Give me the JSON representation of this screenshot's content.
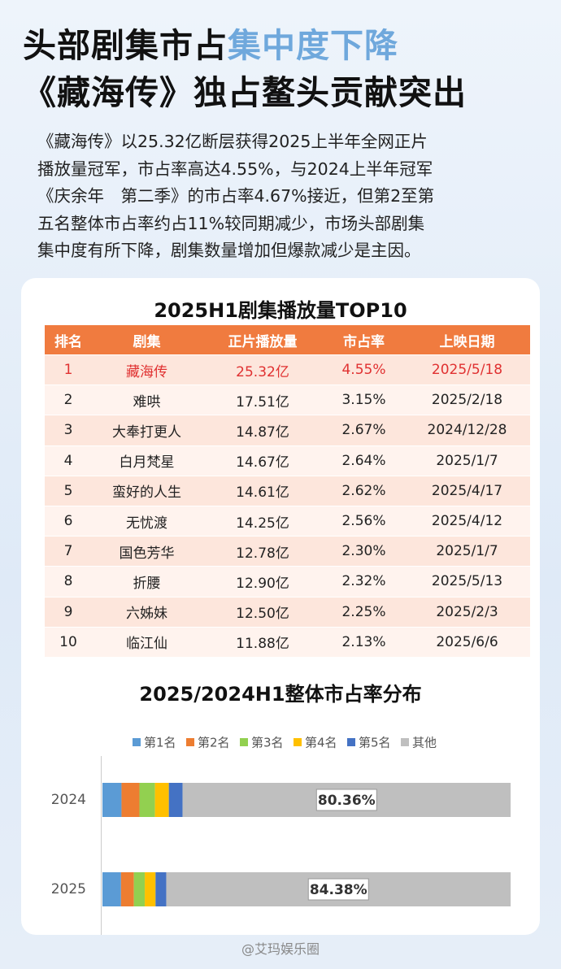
{
  "header": {
    "title_parts": [
      "头部剧集市占",
      "集中度下降"
    ],
    "title_line2": "《藏海传》独占鳌头贡献突出",
    "paragraph": [
      "《藏海传》以25.32亿断层获得2025上半年全网正片",
      "播放量冠军，市占率高达4.55%，与2024上半年冠军",
      "《庆余年　第二季》的市占率4.67%接近，但第2至第",
      "五名整体市占率约占11%较同期减少，市场头部剧集",
      "集中度有所下降，剧集数量增加但爆款减少是主因。"
    ]
  },
  "table": {
    "title": "2025H1剧集播放量TOP10",
    "columns": [
      "排名",
      "剧集",
      "正片播放量",
      "市占率",
      "上映日期"
    ],
    "rows": [
      [
        "1",
        "藏海传",
        "25.32亿",
        "4.55%",
        "2025/5/18"
      ],
      [
        "2",
        "难哄",
        "17.51亿",
        "3.15%",
        "2025/2/18"
      ],
      [
        "3",
        "大奉打更人",
        "14.87亿",
        "2.67%",
        "2024/12/28"
      ],
      [
        "4",
        "白月梵星",
        "14.67亿",
        "2.64%",
        "2025/1/7"
      ],
      [
        "5",
        "蛮好的人生",
        "14.61亿",
        "2.62%",
        "2025/4/17"
      ],
      [
        "6",
        "无忧渡",
        "14.25亿",
        "2.56%",
        "2025/4/12"
      ],
      [
        "7",
        "国色芳华",
        "12.78亿",
        "2.30%",
        "2025/1/7"
      ],
      [
        "8",
        "折腰",
        "12.90亿",
        "2.32%",
        "2025/5/13"
      ],
      [
        "9",
        "六姊妹",
        "12.50亿",
        "2.25%",
        "2025/2/3"
      ],
      [
        "10",
        "临江仙",
        "11.88亿",
        "2.13%",
        "2025/6/6"
      ]
    ]
  },
  "chart_data": {
    "type": "stacked_bar_horizontal",
    "title": "2025/2024H1整体市占率分布",
    "categories": [
      "2024",
      "2025"
    ],
    "xlim": [
      0,
      100
    ],
    "series": [
      {
        "name": "第1名",
        "color": "#5b9bd5",
        "values": [
          4.67,
          4.55
        ]
      },
      {
        "name": "第2名",
        "color": "#ed7d31",
        "values": [
          4.4,
          3.15
        ]
      },
      {
        "name": "第3名",
        "color": "#92d050",
        "values": [
          3.8,
          2.67
        ]
      },
      {
        "name": "第4名",
        "color": "#ffc000",
        "values": [
          3.4,
          2.64
        ]
      },
      {
        "name": "第5名",
        "color": "#4472c4",
        "values": [
          3.37,
          2.62
        ]
      },
      {
        "name": "其他",
        "color": "#bfbfbf",
        "values": [
          80.36,
          84.38
        ],
        "value_labels": [
          "80.36%",
          "84.38%"
        ]
      }
    ],
    "legend": "top"
  },
  "footer": {
    "watermark": "@艾玛娱乐圈"
  }
}
